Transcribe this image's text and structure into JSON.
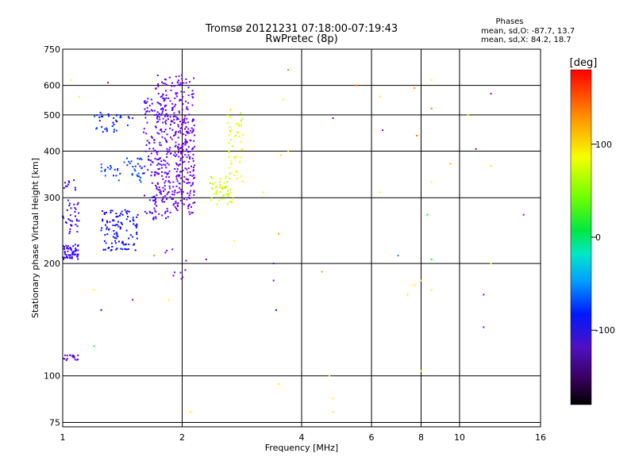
{
  "chart_data": {
    "type": "scatter",
    "title": "Tromsø 20121231 07:18:00-07:19:43",
    "subtitle": "RwPretec (8p)",
    "xlabel": "Frequency [MHz]",
    "ylabel": "Stationary phase Virtual Height [km]",
    "x_scale": "log",
    "y_scale": "log",
    "xlim": [
      1,
      16
    ],
    "ylim": [
      73,
      750
    ],
    "x_ticks": [
      1,
      2,
      4,
      6,
      8,
      10,
      16
    ],
    "y_ticks": [
      75,
      100,
      200,
      300,
      400,
      500,
      600,
      750
    ],
    "grid": true,
    "phase_stats": {
      "title": "Phases",
      "line_o": "mean, sd,O: -87.7, 13.7",
      "line_x": "mean, sd,X:  84.2, 18.7"
    },
    "colorbar": {
      "label": "[deg]",
      "ticks": [
        100,
        0,
        -100
      ],
      "range": [
        -180,
        180
      ],
      "colormap": "rainbow"
    },
    "clusters": [
      {
        "x": [
          1.0,
          1.1
        ],
        "y": [
          205,
          225
        ],
        "n": 60,
        "phase": -100
      },
      {
        "x": [
          1.25,
          1.55
        ],
        "y": [
          215,
          280
        ],
        "n": 110,
        "phase": -85
      },
      {
        "x": [
          1.25,
          1.6
        ],
        "y": [
          330,
          385
        ],
        "n": 45,
        "phase": -72
      },
      {
        "x": [
          1.2,
          1.5
        ],
        "y": [
          450,
          510
        ],
        "n": 35,
        "phase": -75
      },
      {
        "x": [
          1.0,
          1.1
        ],
        "y": [
          240,
          300
        ],
        "n": 35,
        "phase": -100
      },
      {
        "x": [
          1.0,
          1.08
        ],
        "y": [
          315,
          340
        ],
        "n": 10,
        "phase": -100
      },
      {
        "x": [
          1.6,
          1.85
        ],
        "y": [
          260,
          560
        ],
        "n": 130,
        "phase": -105
      },
      {
        "x": [
          1.7,
          2.15
        ],
        "y": [
          270,
          640
        ],
        "n": 330,
        "phase": -115
      },
      {
        "x": [
          1.9,
          2.15
        ],
        "y": [
          290,
          520
        ],
        "n": 90,
        "phase": -125
      },
      {
        "x": [
          2.35,
          2.7
        ],
        "y": [
          285,
          350
        ],
        "n": 55,
        "phase": 100
      },
      {
        "x": [
          2.6,
          2.85
        ],
        "y": [
          330,
          520
        ],
        "n": 45,
        "phase": 105
      },
      {
        "x": [
          1.0,
          1.1
        ],
        "y": [
          110,
          114
        ],
        "n": 18,
        "phase": -115
      },
      {
        "x": [
          1.8,
          2.1
        ],
        "y": [
          180,
          220
        ],
        "n": 10,
        "phase": -118
      }
    ],
    "sparse_points": [
      {
        "x": 1.05,
        "y": 620,
        "phase": 115
      },
      {
        "x": 1.1,
        "y": 560,
        "phase": 110
      },
      {
        "x": 1.3,
        "y": 610,
        "phase": -120
      },
      {
        "x": 1.5,
        "y": 490,
        "phase": -110
      },
      {
        "x": 1.2,
        "y": 170,
        "phase": 110
      },
      {
        "x": 1.25,
        "y": 150,
        "phase": -85
      },
      {
        "x": 1.2,
        "y": 120,
        "phase": 20
      },
      {
        "x": 1.5,
        "y": 160,
        "phase": -115
      },
      {
        "x": 1.7,
        "y": 210,
        "phase": 145
      },
      {
        "x": 1.85,
        "y": 160,
        "phase": 115
      },
      {
        "x": 2.1,
        "y": 80,
        "phase": 120
      },
      {
        "x": 2.3,
        "y": 205,
        "phase": -120
      },
      {
        "x": 2.7,
        "y": 230,
        "phase": 110
      },
      {
        "x": 3.2,
        "y": 310,
        "phase": 110
      },
      {
        "x": 3.4,
        "y": 200,
        "phase": -110
      },
      {
        "x": 3.4,
        "y": 180,
        "phase": -115
      },
      {
        "x": 3.45,
        "y": 150,
        "phase": -80
      },
      {
        "x": 3.5,
        "y": 240,
        "phase": 140
      },
      {
        "x": 3.55,
        "y": 390,
        "phase": 120
      },
      {
        "x": 3.6,
        "y": 550,
        "phase": 115
      },
      {
        "x": 3.7,
        "y": 660,
        "phase": 150
      },
      {
        "x": 3.7,
        "y": 400,
        "phase": 120
      },
      {
        "x": 3.5,
        "y": 95,
        "phase": 105
      },
      {
        "x": 4.5,
        "y": 190,
        "phase": 140
      },
      {
        "x": 4.8,
        "y": 490,
        "phase": -120
      },
      {
        "x": 4.8,
        "y": 80,
        "phase": 120
      },
      {
        "x": 4.8,
        "y": 87,
        "phase": 118
      },
      {
        "x": 4.7,
        "y": 100,
        "phase": 115
      },
      {
        "x": 5.5,
        "y": 600,
        "phase": 150
      },
      {
        "x": 6.3,
        "y": 560,
        "phase": 118
      },
      {
        "x": 6.4,
        "y": 455,
        "phase": -120
      },
      {
        "x": 6.3,
        "y": 310,
        "phase": 110
      },
      {
        "x": 7.0,
        "y": 210,
        "phase": -50
      },
      {
        "x": 7.4,
        "y": 165,
        "phase": 120
      },
      {
        "x": 7.7,
        "y": 175,
        "phase": 112
      },
      {
        "x": 7.7,
        "y": 590,
        "phase": 140
      },
      {
        "x": 7.8,
        "y": 440,
        "phase": 150
      },
      {
        "x": 8.0,
        "y": 180,
        "phase": 118
      },
      {
        "x": 8.3,
        "y": 270,
        "phase": 40
      },
      {
        "x": 8.5,
        "y": 620,
        "phase": 115
      },
      {
        "x": 8.5,
        "y": 520,
        "phase": 150
      },
      {
        "x": 8.5,
        "y": 330,
        "phase": 110
      },
      {
        "x": 8.5,
        "y": 205,
        "phase": 40
      },
      {
        "x": 8.5,
        "y": 170,
        "phase": 118
      },
      {
        "x": 8.0,
        "y": 103,
        "phase": 112
      },
      {
        "x": 9.5,
        "y": 370,
        "phase": 130
      },
      {
        "x": 10.5,
        "y": 500,
        "phase": 110
      },
      {
        "x": 11.0,
        "y": 405,
        "phase": -120
      },
      {
        "x": 11.5,
        "y": 165,
        "phase": -118
      },
      {
        "x": 11.5,
        "y": 135,
        "phase": -115
      },
      {
        "x": 12.0,
        "y": 570,
        "phase": -122
      },
      {
        "x": 12.0,
        "y": 365,
        "phase": 118
      },
      {
        "x": 12.0,
        "y": 200,
        "phase": 110
      },
      {
        "x": 14.5,
        "y": 270,
        "phase": -118
      }
    ]
  }
}
